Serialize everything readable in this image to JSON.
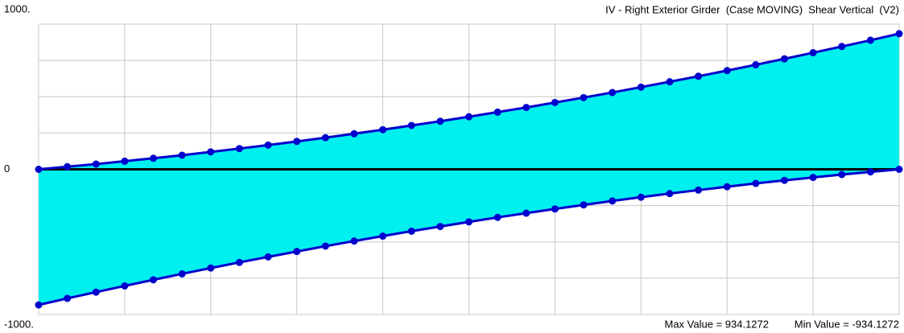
{
  "chart_data": {
    "type": "envelope",
    "title": "IV - Right Exterior Girder  (Case MOVING)  Shear Vertical  (V2)",
    "annotations": [
      "Max Value = 934.1272",
      "Min Value = -934.1272"
    ],
    "x": [
      0,
      1,
      2,
      3,
      4,
      5,
      6,
      7,
      8,
      9,
      10,
      11,
      12,
      13,
      14,
      15,
      16,
      17,
      18,
      19,
      20,
      21,
      22,
      23,
      24,
      25,
      26,
      27,
      28,
      29,
      30
    ],
    "series": [
      {
        "color": "#0000cc",
        "values": [
          0,
          18,
          36,
          56,
          76,
          97,
          120,
          143,
          167,
          192,
          218,
          245,
          273,
          302,
          331,
          362,
          394,
          426,
          460,
          494,
          529,
          566,
          603,
          641,
          680,
          720,
          761,
          803,
          846,
          889,
          934.1272
        ]
      },
      {
        "color": "#0000cc",
        "values": [
          -934.1272,
          -889,
          -846,
          -803,
          -761,
          -720,
          -680,
          -641,
          -603,
          -566,
          -529,
          -494,
          -460,
          -426,
          -394,
          -362,
          -331,
          -302,
          -273,
          -245,
          -218,
          -192,
          -167,
          -143,
          -120,
          -97,
          -76,
          -56,
          -36,
          -18,
          0
        ]
      }
    ],
    "fill_color": "#00f0f0",
    "xlim": [
      0,
      30
    ],
    "xgrid": [
      0,
      3,
      6,
      9,
      12,
      15,
      18,
      21,
      24,
      27,
      30
    ],
    "ylim": [
      -1000,
      1000
    ],
    "yticks": [
      {
        "value": 1000,
        "label": "1000."
      },
      0,
      {
        "value": -1000,
        "label": "-1000."
      }
    ],
    "ygrid": [
      -1000,
      -750,
      -500,
      -250,
      0,
      250,
      500,
      750,
      1000
    ],
    "grid": true
  }
}
